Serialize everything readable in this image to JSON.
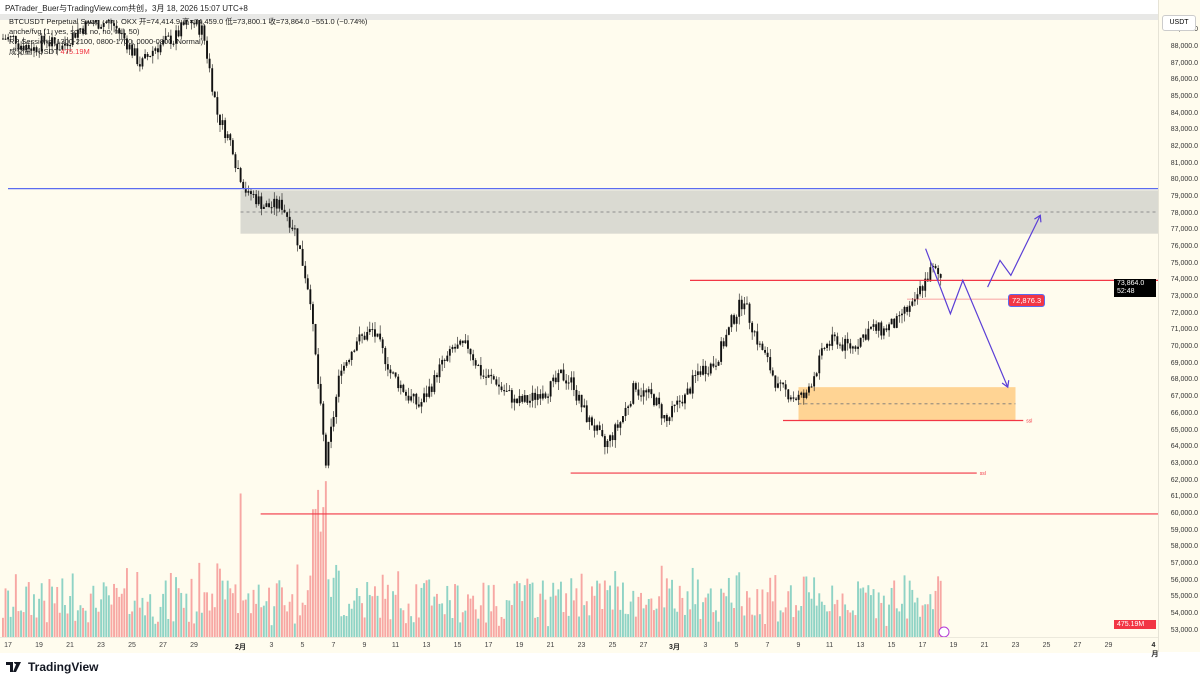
{
  "credit": "PATrader_Buer与TradingView.com共创，3月 18, 2026 15:07 UTC+8",
  "legend": {
    "symbol": "BTCUSDT Perpetual Swap · 4h · OKX",
    "ohlc": "开=74,414.9 高=74,459.0 低=73,800.1 收=73,864.0 −551.0 (−0.74%)",
    "ind1": "anche/fvg (1, yes, solid, no, no, full, 50)",
    "ind2": "RP Sessions (1300-2100, 0800-1700, 0000-0800, Normal)",
    "vol_label": "成交量 · USDT",
    "vol_value": "475.19M"
  },
  "currency_button": "USDT",
  "price_label": {
    "price": "73,864.0",
    "countdown": "52:48"
  },
  "alert_label": "72,876.3",
  "volume_label": "475.19M",
  "ssl_label": "ssl",
  "brand": "TradingView",
  "colors": {
    "up": "#26a69a",
    "down": "#ef5350",
    "vol_up": "#8fd3c5",
    "vol_down": "#f7a7a3",
    "zone": "#d4d3cd",
    "orange": "#ffcf8a",
    "red_line": "#f23645",
    "blue_line": "#5b6cf0",
    "arrow": "#5b3fd6"
  },
  "chart_data": {
    "type": "candlestick",
    "symbol": "BTCUSDT",
    "yticks": [
      "89,000.0",
      "88,000.0",
      "87,000.0",
      "86,000.0",
      "85,000.0",
      "84,000.0",
      "83,000.0",
      "82,000.0",
      "81,000.0",
      "80,000.0",
      "79,000.0",
      "78,000.0",
      "77,000.0",
      "76,000.0",
      "75,000.0",
      "74,000.0",
      "73,000.0",
      "72,000.0",
      "71,000.0",
      "70,000.0",
      "69,000.0",
      "68,000.0",
      "67,000.0",
      "66,000.0",
      "65,000.0",
      "64,000.0",
      "63,000.0",
      "62,000.0",
      "61,000.0",
      "60,000.0",
      "59,000.0",
      "58,000.0",
      "57,000.0",
      "56,000.0",
      "55,000.0",
      "54,000.0",
      "53,000.0"
    ],
    "xticks": [
      {
        "label": "17",
        "day": 0
      },
      {
        "label": "19",
        "day": 2
      },
      {
        "label": "21",
        "day": 4
      },
      {
        "label": "23",
        "day": 6
      },
      {
        "label": "25",
        "day": 8
      },
      {
        "label": "27",
        "day": 10
      },
      {
        "label": "29",
        "day": 12
      },
      {
        "label": "2月",
        "day": 15,
        "bold": true
      },
      {
        "label": "3",
        "day": 17
      },
      {
        "label": "5",
        "day": 19
      },
      {
        "label": "7",
        "day": 21
      },
      {
        "label": "9",
        "day": 23
      },
      {
        "label": "11",
        "day": 25
      },
      {
        "label": "13",
        "day": 27
      },
      {
        "label": "15",
        "day": 29
      },
      {
        "label": "17",
        "day": 31
      },
      {
        "label": "19",
        "day": 33
      },
      {
        "label": "21",
        "day": 35
      },
      {
        "label": "23",
        "day": 37
      },
      {
        "label": "25",
        "day": 39
      },
      {
        "label": "27",
        "day": 41
      },
      {
        "label": "3月",
        "day": 43,
        "bold": true
      },
      {
        "label": "3",
        "day": 45
      },
      {
        "label": "5",
        "day": 47
      },
      {
        "label": "7",
        "day": 49
      },
      {
        "label": "9",
        "day": 51
      },
      {
        "label": "11",
        "day": 53
      },
      {
        "label": "13",
        "day": 55
      },
      {
        "label": "15",
        "day": 57
      },
      {
        "label": "17",
        "day": 59
      },
      {
        "label": "19",
        "day": 61
      },
      {
        "label": "21",
        "day": 63
      },
      {
        "label": "23",
        "day": 65
      },
      {
        "label": "25",
        "day": 67
      },
      {
        "label": "27",
        "day": 69
      },
      {
        "label": "29",
        "day": 71
      },
      {
        "label": "4月",
        "day": 74,
        "bold": true
      }
    ],
    "daily_close": [
      88500,
      88000,
      88500,
      88000,
      89000,
      89500,
      89500,
      88500,
      87000,
      88000,
      88500,
      89500,
      89000,
      84000,
      82000,
      79000,
      78500,
      78500,
      77000,
      73000,
      63000,
      69000,
      70500,
      71000,
      69000,
      67500,
      66500,
      68000,
      69500,
      70000,
      68500,
      68000,
      67000,
      66800,
      67500,
      68000,
      67800,
      65500,
      64000,
      65500,
      67800,
      67000,
      65500,
      67000,
      68500,
      69000,
      71000,
      73000,
      70000,
      68000,
      67200,
      67000,
      69500,
      70500,
      70000,
      71000,
      71000,
      71500,
      72500,
      74500,
      73864
    ],
    "zones": [
      {
        "name": "supply-zone",
        "from_day": 15,
        "top": 79400,
        "bottom": 76800,
        "mid": 78100
      },
      {
        "name": "demand-zone",
        "from_day": 51,
        "to_day": 65,
        "top": 67600,
        "bottom": 65600,
        "mid": 66600
      }
    ],
    "lines": [
      {
        "name": "blue-level",
        "price": 79500,
        "from_day": 0
      },
      {
        "name": "resistance-line",
        "price": 74000,
        "from_day": 44
      },
      {
        "name": "alert-line",
        "price": 72876.3,
        "from_day": 58,
        "to_day": 66
      },
      {
        "name": "ssl-line-1",
        "price": 65600,
        "from_day": 50,
        "to_day": 65.5,
        "ssl": true
      },
      {
        "name": "ssl-line-2",
        "price": 62450,
        "from_day": 36.3,
        "to_day": 62.5,
        "ssl": true
      },
      {
        "name": "support-60k",
        "price": 60000,
        "from_day": 16.3
      }
    ],
    "projection_down": [
      [
        59.2,
        75900
      ],
      [
        60.8,
        72000
      ],
      [
        61.6,
        74000
      ],
      [
        64.5,
        67600
      ]
    ],
    "projection_up": [
      [
        63.2,
        73600
      ],
      [
        64,
        75200
      ],
      [
        64.7,
        74300
      ],
      [
        66.6,
        77900
      ]
    ]
  }
}
